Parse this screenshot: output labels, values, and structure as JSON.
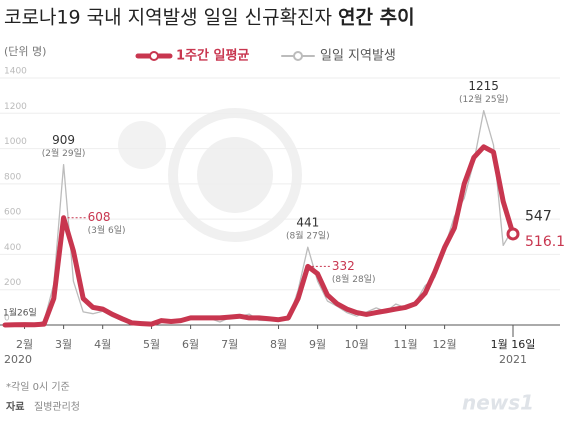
{
  "chart_data": {
    "type": "line",
    "title": "코로나19 국내 지역발생 일일 신규확진자",
    "title_bold": "연간 추이",
    "unit": "(단위 명)",
    "categories": [
      null,
      null,
      "2월",
      null,
      null,
      null,
      "3월",
      null,
      null,
      null,
      "4월",
      null,
      null,
      null,
      null,
      "5월",
      null,
      null,
      null,
      "6월",
      null,
      null,
      null,
      "7월",
      null,
      null,
      null,
      null,
      "8월",
      null,
      null,
      null,
      "9월",
      null,
      null,
      null,
      "10월",
      null,
      null,
      null,
      null,
      "11월",
      null,
      null,
      null,
      "12월",
      null,
      null,
      null,
      null,
      null,
      null,
      "1월 16일"
    ],
    "years": [
      "2020",
      "2021"
    ],
    "start_label": "1월26일",
    "series": [
      {
        "name": "1주간 일평균",
        "color": "#c8364f",
        "values": [
          0,
          1,
          2,
          1,
          5,
          150,
          608,
          420,
          150,
          100,
          90,
          60,
          35,
          12,
          8,
          5,
          25,
          20,
          25,
          40,
          40,
          40,
          40,
          45,
          50,
          40,
          40,
          35,
          30,
          40,
          150,
          332,
          290,
          170,
          120,
          90,
          70,
          60,
          70,
          80,
          90,
          100,
          120,
          180,
          300,
          440,
          550,
          800,
          950,
          1010,
          980,
          700,
          516.1
        ],
        "notes": [
          null,
          null,
          null,
          null,
          null,
          null,
          "(3월 6일)",
          null,
          null,
          null,
          null,
          null,
          null,
          null,
          null,
          null,
          null,
          null,
          null,
          null,
          null,
          null,
          null,
          null,
          null,
          null,
          null,
          null,
          null,
          null,
          null,
          "(8월 28일)",
          null,
          null,
          null,
          null,
          null,
          null,
          null,
          null,
          null,
          null,
          null,
          null,
          null,
          null,
          null,
          null,
          null,
          null,
          null,
          null,
          null
        ]
      },
      {
        "name": "일일 지역발생",
        "color": "#bcbcbc",
        "values": [
          1,
          3,
          1,
          0,
          22,
          231,
          909,
          248,
          74,
          64,
          78,
          47,
          25,
          9,
          10,
          8,
          35,
          15,
          16,
          35,
          38,
          37,
          17,
          42,
          48,
          62,
          26,
          25,
          33,
          28,
          197,
          441,
          248,
          136,
          106,
          70,
          50,
          73,
          97,
          76,
          119,
          97,
          126,
          223,
          271,
          438,
          615,
          718,
          926,
          1215,
          1020,
          451,
          547
        ],
        "notes": [
          null,
          null,
          null,
          null,
          null,
          null,
          "(2월 29일)",
          null,
          null,
          null,
          null,
          null,
          null,
          null,
          null,
          null,
          null,
          null,
          null,
          null,
          null,
          null,
          null,
          null,
          null,
          null,
          null,
          null,
          null,
          null,
          null,
          "(8월 27일)",
          null,
          null,
          null,
          null,
          null,
          null,
          null,
          null,
          null,
          null,
          null,
          null,
          null,
          null,
          null,
          null,
          null,
          "(12월 25일)",
          null,
          null,
          null
        ]
      }
    ],
    "ylim": [
      0,
      1400
    ],
    "yticks": [
      0,
      200,
      400,
      600,
      800,
      1000,
      1200,
      1400
    ],
    "grid": true,
    "footnote": "*각일 0시 기준",
    "source_key": "자료",
    "source": "질병관리청",
    "logo": "news1"
  }
}
